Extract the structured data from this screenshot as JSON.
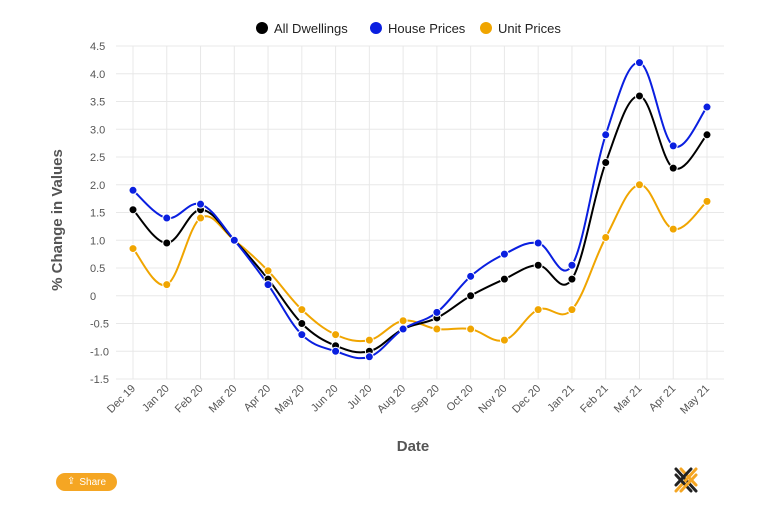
{
  "share_label": "Share",
  "chart_data": {
    "type": "line",
    "title": "",
    "xlabel": "Date",
    "ylabel": "% Change in Values",
    "categories": [
      "Dec 19",
      "Jan 20",
      "Feb 20",
      "Mar 20",
      "Apr 20",
      "May 20",
      "Jun 20",
      "Jul 20",
      "Aug 20",
      "Sep 20",
      "Oct 20",
      "Nov 20",
      "Dec 20",
      "Jan 21",
      "Feb 21",
      "Mar 21",
      "Apr 21",
      "May 21"
    ],
    "yticks": [
      "4.5",
      "4.0",
      "3.5",
      "3.0",
      "2.5",
      "2.0",
      "1.5",
      "1.0",
      "0.5",
      "0",
      "-0.5",
      "-1.0",
      "-1.5"
    ],
    "ylim": [
      -1.5,
      4.5
    ],
    "grid": true,
    "legend_position": "top-center",
    "series": [
      {
        "name": "All Dwellings",
        "color": "#000000",
        "values": [
          1.55,
          0.95,
          1.55,
          1.0,
          0.3,
          -0.5,
          -0.9,
          -1.0,
          -0.6,
          -0.4,
          0.0,
          0.3,
          0.55,
          0.3,
          2.4,
          3.6,
          2.3,
          2.9
        ]
      },
      {
        "name": "House Prices",
        "color": "#0a1fe0",
        "values": [
          1.9,
          1.4,
          1.65,
          1.0,
          0.2,
          -0.7,
          -1.0,
          -1.1,
          -0.6,
          -0.3,
          0.35,
          0.75,
          0.95,
          0.55,
          2.9,
          4.2,
          2.7,
          3.4
        ]
      },
      {
        "name": "Unit Prices",
        "color": "#f0a500",
        "values": [
          0.85,
          0.2,
          1.4,
          1.0,
          0.45,
          -0.25,
          -0.7,
          -0.8,
          -0.45,
          -0.6,
          -0.6,
          -0.8,
          -0.25,
          -0.25,
          1.05,
          2.0,
          1.2,
          1.7
        ]
      }
    ]
  },
  "colors": {
    "grid": "#e8e8e8",
    "share_bg": "#f5a623"
  },
  "icons": {
    "share": "share-icon",
    "logo": "brand-logo"
  }
}
